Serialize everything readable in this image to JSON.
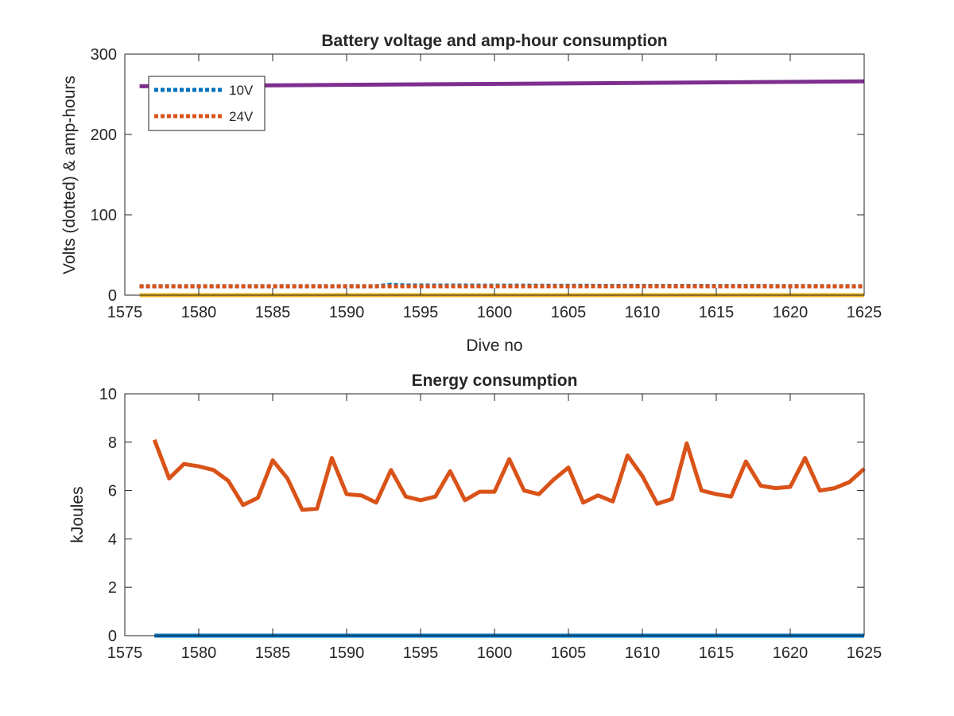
{
  "chart_data": [
    {
      "type": "line",
      "title": "Battery voltage and amp-hour consumption",
      "xlabel": "Dive no",
      "ylabel": "Volts (dotted) & amp-hours",
      "xlim": [
        1575,
        1625
      ],
      "ylim": [
        0,
        300
      ],
      "x_ticks": [
        "1575",
        "1580",
        "1585",
        "1590",
        "1595",
        "1600",
        "1605",
        "1610",
        "1615",
        "1620",
        "1625"
      ],
      "y_ticks": [
        "0",
        "100",
        "200",
        "300"
      ],
      "grid": false,
      "legend_position": "top-left",
      "legend": [
        "10V",
        "24V"
      ],
      "series": [
        {
          "name": "10V",
          "style": "dotted",
          "color": "#0072BD",
          "x": [
            1576,
            1592,
            1593,
            1594,
            1625
          ],
          "values": [
            11,
            11,
            13,
            12,
            11
          ]
        },
        {
          "name": "24V",
          "style": "dotted",
          "color": "#D95319",
          "x": [
            1576,
            1625
          ],
          "values": [
            11,
            11
          ]
        },
        {
          "style": "solid",
          "color": "#EDB120",
          "x": [
            1576,
            1625
          ],
          "values": [
            0,
            0
          ]
        },
        {
          "style": "solid",
          "color": "#7E2F8E",
          "x": [
            1576,
            1625
          ],
          "values": [
            260,
            266
          ]
        }
      ]
    },
    {
      "type": "line",
      "title": "Energy consumption",
      "xlabel": "",
      "ylabel": "kJoules",
      "xlim": [
        1575,
        1625
      ],
      "ylim": [
        0,
        10
      ],
      "x_ticks": [
        "1575",
        "1580",
        "1585",
        "1590",
        "1595",
        "1600",
        "1605",
        "1610",
        "1615",
        "1620",
        "1625"
      ],
      "y_ticks": [
        "0",
        "2",
        "4",
        "6",
        "8",
        "10"
      ],
      "grid": false,
      "series": [
        {
          "style": "solid",
          "color": "#0072BD",
          "x": [
            1577,
            1625
          ],
          "values": [
            0,
            0
          ]
        },
        {
          "style": "solid",
          "color": "#D95319",
          "x": [
            1577,
            1578,
            1579,
            1580,
            1581,
            1582,
            1583,
            1584,
            1585,
            1586,
            1587,
            1588,
            1589,
            1590,
            1591,
            1592,
            1593,
            1594,
            1595,
            1596,
            1597,
            1598,
            1599,
            1600,
            1601,
            1602,
            1603,
            1604,
            1605,
            1606,
            1607,
            1608,
            1609,
            1610,
            1611,
            1612,
            1613,
            1614,
            1615,
            1616,
            1617,
            1618,
            1619,
            1620,
            1621,
            1622,
            1623,
            1624,
            1625
          ],
          "values": [
            8.1,
            6.5,
            7.1,
            7.0,
            6.85,
            6.4,
            5.4,
            5.7,
            7.25,
            6.5,
            5.2,
            5.25,
            7.35,
            5.85,
            5.8,
            5.5,
            6.85,
            5.75,
            5.6,
            5.75,
            6.8,
            5.6,
            5.95,
            5.95,
            7.3,
            6.0,
            5.85,
            6.45,
            6.95,
            5.5,
            5.8,
            5.55,
            7.45,
            6.6,
            5.45,
            5.65,
            7.95,
            6.0,
            5.85,
            5.75,
            7.2,
            6.2,
            6.1,
            6.15,
            7.35,
            6.0,
            6.1,
            6.35,
            6.9
          ]
        }
      ]
    }
  ]
}
